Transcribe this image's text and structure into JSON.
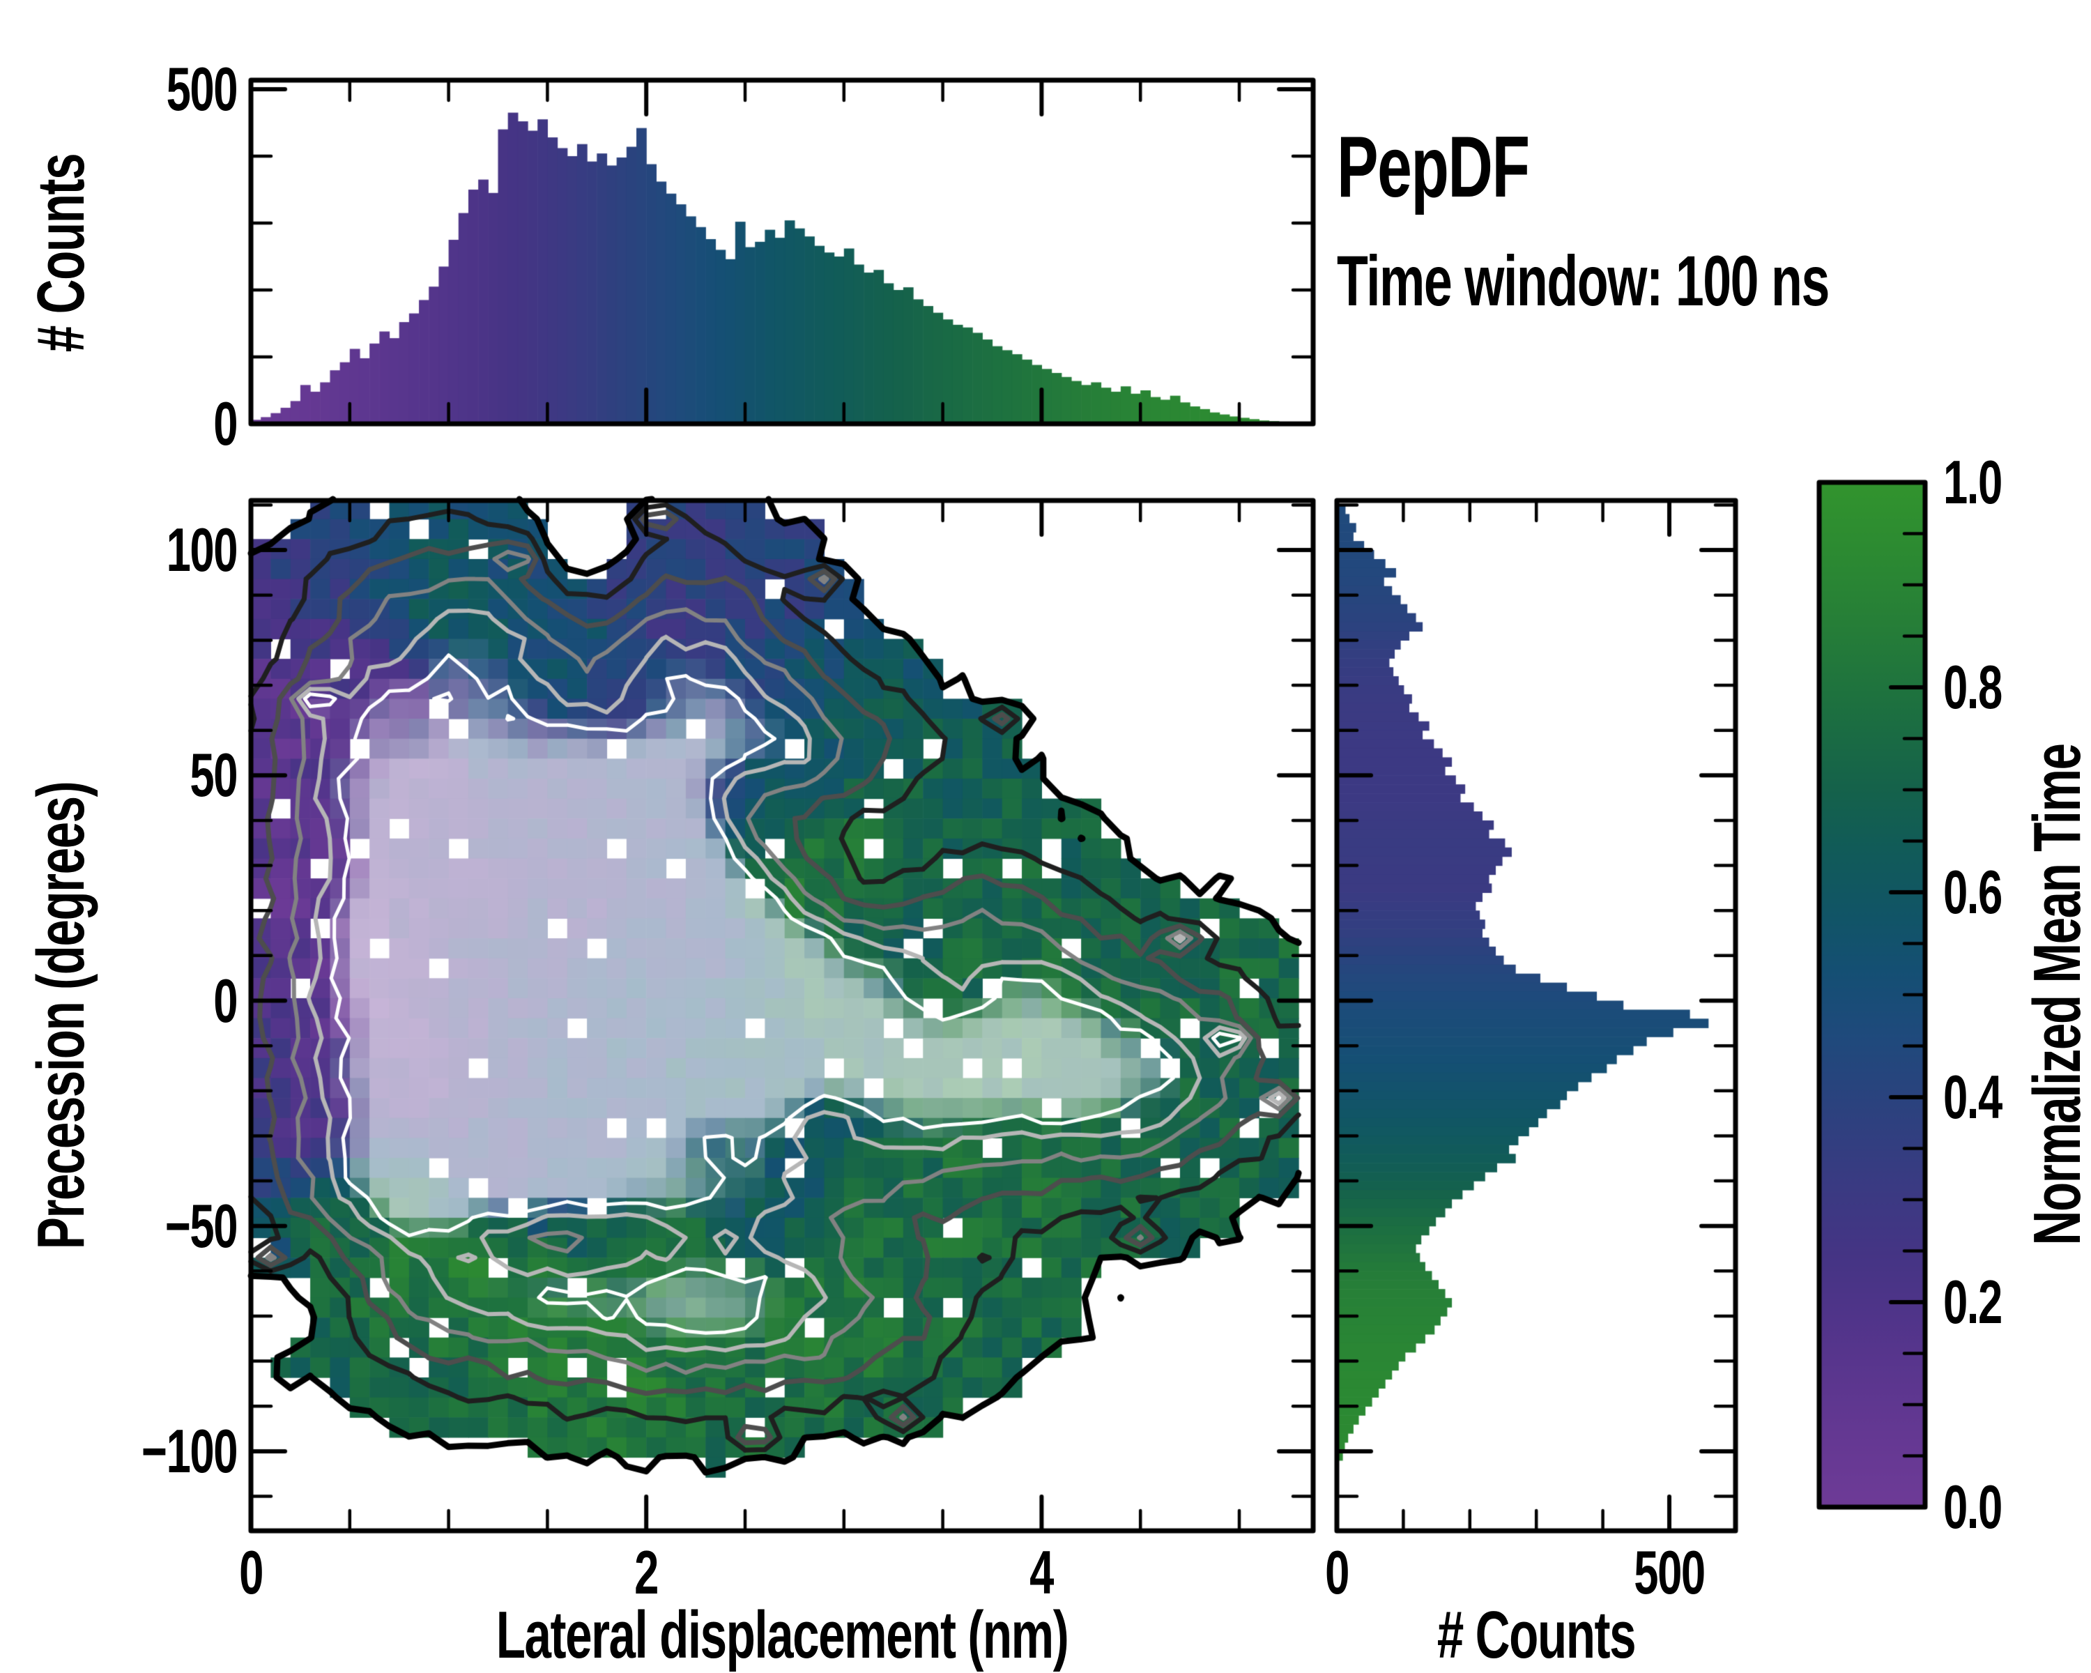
{
  "title": {
    "heading": "PepDF",
    "subheading": "Time window: 100 ns"
  },
  "chart_data": {
    "colormap": {
      "stops": [
        [
          0.0,
          "#6e3b97"
        ],
        [
          0.08,
          "#633892"
        ],
        [
          0.16,
          "#55358c"
        ],
        [
          0.24,
          "#463485"
        ],
        [
          0.32,
          "#393b82"
        ],
        [
          0.4,
          "#2a437e"
        ],
        [
          0.46,
          "#1f4a7c"
        ],
        [
          0.52,
          "#154f74"
        ],
        [
          0.58,
          "#115566"
        ],
        [
          0.64,
          "#115b59"
        ],
        [
          0.7,
          "#15624b"
        ],
        [
          0.78,
          "#1d7040"
        ],
        [
          0.86,
          "#267e38"
        ],
        [
          0.93,
          "#2c8a32"
        ],
        [
          1.0,
          "#32942e"
        ]
      ]
    },
    "colorbar": {
      "label": "Normalized Mean Time",
      "range": [
        0.0,
        1.0
      ],
      "ticks": [
        [
          "0.0",
          0.0
        ],
        [
          "0.2",
          0.2
        ],
        [
          "0.4",
          0.4
        ],
        [
          "0.6",
          0.6
        ],
        [
          "0.8",
          0.8
        ],
        [
          "1.0",
          1.0
        ]
      ],
      "minor_step": 0.05
    },
    "panels": [
      {
        "id": "top-histogram",
        "type": "bar",
        "ylabel": "# Counts",
        "ylim": [
          0,
          513
        ],
        "ytick_labels": [
          [
            "500",
            500
          ],
          [
            "0",
            0
          ]
        ],
        "y_minor_ticks": [
          100,
          200,
          300,
          400
        ],
        "xlim": [
          0,
          5.37
        ],
        "x_minor_step": 0.5,
        "x_major_ticks": [
          0,
          2,
          4
        ],
        "bin_start": 0.0,
        "bin_width": 0.05,
        "values": [
          6,
          10,
          16,
          24,
          34,
          58,
          48,
          62,
          80,
          92,
          112,
          98,
          120,
          138,
          128,
          152,
          165,
          185,
          205,
          235,
          275,
          315,
          350,
          365,
          345,
          440,
          465,
          452,
          438,
          455,
          428,
          412,
          400,
          418,
          392,
          404,
          386,
          398,
          414,
          442,
          388,
          362,
          344,
          328,
          310,
          294,
          276,
          260,
          246,
          302,
          264,
          272,
          290,
          278,
          304,
          292,
          280,
          266,
          256,
          250,
          262,
          238,
          226,
          230,
          210,
          200,
          204,
          186,
          176,
          166,
          156,
          148,
          144,
          136,
          126,
          116,
          110,
          104,
          96,
          88,
          82,
          76,
          70,
          64,
          58,
          62,
          54,
          48,
          56,
          45,
          50,
          40,
          36,
          42,
          32,
          26,
          22,
          17,
          14,
          11,
          9,
          7,
          5,
          4,
          3,
          2
        ],
        "color_anchors": [
          [
            0,
            0.03
          ],
          [
            0.5,
            0.1
          ],
          [
            1.0,
            0.18
          ],
          [
            1.5,
            0.28
          ],
          [
            2.0,
            0.42
          ],
          [
            2.3,
            0.5
          ],
          [
            2.6,
            0.57
          ],
          [
            3.0,
            0.65
          ],
          [
            3.5,
            0.74
          ],
          [
            4.0,
            0.82
          ],
          [
            4.5,
            0.9
          ],
          [
            5.3,
            0.97
          ]
        ]
      },
      {
        "id": "main-heatmap",
        "type": "heatmap",
        "xlabel": "Lateral displacement (nm)",
        "ylabel": "Precession (degrees)",
        "xlim": [
          0,
          5.37
        ],
        "ylim": [
          -117.6,
          111.0
        ],
        "xtick_labels": [
          [
            "0",
            0
          ],
          [
            "2",
            2
          ],
          [
            "4",
            4
          ]
        ],
        "x_minor_step": 0.5,
        "ytick_labels": [
          [
            "100",
            100
          ],
          [
            "50",
            50
          ],
          [
            "0",
            0
          ],
          [
            "−50",
            -50
          ],
          [
            "−100",
            -100
          ]
        ],
        "y_minor_step": 10,
        "grid": {
          "x0": 0.0,
          "dx": 0.1,
          "nx": 53,
          "y_top": 111.3,
          "dy": 4.43,
          "ny": 51
        },
        "seed": 1337,
        "mask_level": 0.12,
        "hole_fraction": 0.045,
        "node_noise": 0.05,
        "t_noise": 0.09,
        "lighten_start": 0.86,
        "lighten_span": 0.2,
        "lighten_max": 0.62,
        "gaussians": [
          [
            1.35,
            28,
            0.55,
            33,
            1.0
          ],
          [
            1.95,
            -3,
            0.5,
            26,
            1.05
          ],
          [
            0.6,
            0,
            0.5,
            38,
            0.75
          ],
          [
            2.9,
            -15,
            0.9,
            26,
            0.8
          ],
          [
            1.7,
            -62,
            0.85,
            20,
            0.6
          ],
          [
            2.7,
            -72,
            0.75,
            14,
            0.5
          ],
          [
            1.0,
            85,
            0.55,
            18,
            0.55
          ],
          [
            2.2,
            75,
            0.45,
            22,
            0.6
          ],
          [
            2.9,
            55,
            0.5,
            14,
            0.5
          ],
          [
            4.1,
            -10,
            0.75,
            20,
            0.55
          ],
          [
            4.6,
            -20,
            0.5,
            16,
            0.4
          ],
          [
            0.9,
            -45,
            0.5,
            18,
            0.5
          ],
          [
            3.4,
            20,
            0.5,
            18,
            0.45
          ],
          [
            2.3,
            30,
            0.5,
            25,
            0.5
          ],
          [
            0.45,
            55,
            0.35,
            16,
            0.35
          ]
        ],
        "voids": [
          [
            1.7,
            98,
            0.22,
            13,
            -0.45
          ],
          [
            3.15,
            30,
            0.35,
            14,
            -0.55
          ],
          [
            2.5,
            42,
            0.25,
            10,
            -0.4
          ],
          [
            1.8,
            66,
            0.28,
            9,
            -0.25
          ],
          [
            1.55,
            -53,
            0.55,
            6,
            -0.45
          ],
          [
            0.3,
            -62,
            0.3,
            10,
            -0.3
          ],
          [
            2.25,
            -27,
            0.22,
            7,
            -0.35
          ],
          [
            2.88,
            -26,
            0.18,
            6,
            -0.28
          ],
          [
            3.5,
            2,
            0.22,
            8,
            -0.3
          ]
        ],
        "spots": {
          "amp": 0.55,
          "sx": 0.07,
          "sy": 2.0,
          "points": [
            [
              2.05,
              107,
              0.35
            ],
            [
              1.35,
              99,
              0.5
            ],
            [
              0.32,
              66,
              0.1
            ],
            [
              2.9,
              93,
              0.4
            ],
            [
              3.8,
              62,
              0.6
            ],
            [
              4.7,
              14,
              0.72
            ],
            [
              4.95,
              -9,
              0.72
            ],
            [
              0.1,
              -57,
              0.5
            ],
            [
              2.55,
              -97,
              0.85
            ],
            [
              3.3,
              -92,
              0.8
            ],
            [
              4.5,
              -52,
              0.75
            ],
            [
              5.2,
              -22,
              0.7
            ]
          ]
        },
        "t_control_points": [
          [
            0.4,
            25,
            0.07
          ],
          [
            0.5,
            0,
            0.1
          ],
          [
            0.35,
            -25,
            0.22
          ],
          [
            0.8,
            45,
            0.15
          ],
          [
            1.1,
            28,
            0.25
          ],
          [
            0.9,
            -15,
            0.18
          ],
          [
            1.5,
            12,
            0.3
          ],
          [
            1.8,
            -5,
            0.45
          ],
          [
            1.55,
            38,
            0.32
          ],
          [
            1.0,
            88,
            0.62
          ],
          [
            1.5,
            78,
            0.55
          ],
          [
            2.15,
            85,
            0.35
          ],
          [
            2.3,
            62,
            0.42
          ],
          [
            2.05,
            45,
            0.36
          ],
          [
            2.8,
            57,
            0.6
          ],
          [
            3.25,
            48,
            0.68
          ],
          [
            2.75,
            28,
            0.82
          ],
          [
            3.0,
            32,
            0.8
          ],
          [
            3.0,
            2,
            0.7
          ],
          [
            2.45,
            -18,
            0.55
          ],
          [
            3.5,
            -12,
            0.75
          ],
          [
            4.0,
            6,
            0.78
          ],
          [
            4.5,
            -8,
            0.73
          ],
          [
            4.9,
            -20,
            0.72
          ],
          [
            3.9,
            -35,
            0.8
          ],
          [
            2.1,
            -55,
            0.8
          ],
          [
            1.2,
            -62,
            0.85
          ],
          [
            0.55,
            -50,
            0.75
          ],
          [
            0.8,
            -60,
            0.82
          ],
          [
            1.8,
            -78,
            0.88
          ],
          [
            2.9,
            -72,
            0.82
          ],
          [
            2.2,
            15,
            0.35
          ],
          [
            1.7,
            25,
            0.28
          ],
          [
            1.3,
            -35,
            0.35
          ],
          [
            1.8,
            -28,
            0.42
          ],
          [
            2.6,
            -40,
            0.6
          ],
          [
            3.3,
            -55,
            0.78
          ],
          [
            0.2,
            60,
            0.12
          ],
          [
            0.7,
            65,
            0.2
          ],
          [
            1.35,
            55,
            0.38
          ],
          [
            2.5,
            95,
            0.38
          ],
          [
            4.3,
            18,
            0.72
          ],
          [
            5.0,
            3,
            0.75
          ]
        ],
        "contour_levels": [
          [
            0.12,
            "#000000",
            9
          ],
          [
            0.3,
            "#1f1f1f",
            7
          ],
          [
            0.48,
            "#4d4d4d",
            7
          ],
          [
            0.66,
            "#828282",
            6
          ],
          [
            0.8,
            "#b6b6b6",
            6
          ],
          [
            0.92,
            "#ffffff",
            5
          ]
        ]
      },
      {
        "id": "right-histogram",
        "type": "bar-horizontal",
        "xlabel": "# Counts",
        "xlim": [
          0,
          600
        ],
        "xtick_labels": [
          [
            "0",
            0
          ],
          [
            "500",
            500
          ]
        ],
        "x_minor_ticks": [
          100,
          200,
          300,
          400
        ],
        "y_minor_step": 10,
        "y_major_ticks": [
          100,
          50,
          0,
          -50,
          -100
        ],
        "bin_top": 110,
        "bin_height": 2,
        "values": [
          12,
          18,
          28,
          24,
          40,
          55,
          72,
          88,
          70,
          82,
          95,
          105,
          118,
          128,
          108,
          95,
          86,
          78,
          84,
          92,
          100,
          112,
          108,
          122,
          138,
          128,
          145,
          158,
          172,
          162,
          178,
          192,
          185,
          205,
          218,
          235,
          228,
          252,
          262,
          248,
          238,
          228,
          232,
          218,
          208,
          214,
          222,
          218,
          228,
          238,
          250,
          268,
          305,
          345,
          390,
          430,
          530,
          558,
          505,
          465,
          445,
          420,
          405,
          382,
          362,
          345,
          335,
          315,
          302,
          288,
          272,
          258,
          268,
          240,
          222,
          205,
          188,
          172,
          162,
          148,
          138,
          126,
          118,
          124,
          132,
          142,
          152,
          162,
          172,
          165,
          155,
          146,
          132,
          118,
          102,
          92,
          82,
          72,
          62,
          52,
          42,
          32,
          24,
          16,
          11,
          8
        ],
        "color_anchors": [
          [
            -101,
            0.93
          ],
          [
            -85,
            0.92
          ],
          [
            -75,
            0.9
          ],
          [
            -65,
            0.87
          ],
          [
            -58,
            0.83
          ],
          [
            -52,
            0.78
          ],
          [
            -46,
            0.73
          ],
          [
            -40,
            0.68
          ],
          [
            -33,
            0.63
          ],
          [
            -25,
            0.58
          ],
          [
            -15,
            0.53
          ],
          [
            -8,
            0.5
          ],
          [
            0,
            0.47
          ],
          [
            8,
            0.42
          ],
          [
            15,
            0.36
          ],
          [
            25,
            0.31
          ],
          [
            35,
            0.32
          ],
          [
            45,
            0.3
          ],
          [
            55,
            0.3
          ],
          [
            65,
            0.31
          ],
          [
            75,
            0.34
          ],
          [
            85,
            0.4
          ],
          [
            95,
            0.44
          ],
          [
            109,
            0.46
          ]
        ]
      }
    ]
  }
}
